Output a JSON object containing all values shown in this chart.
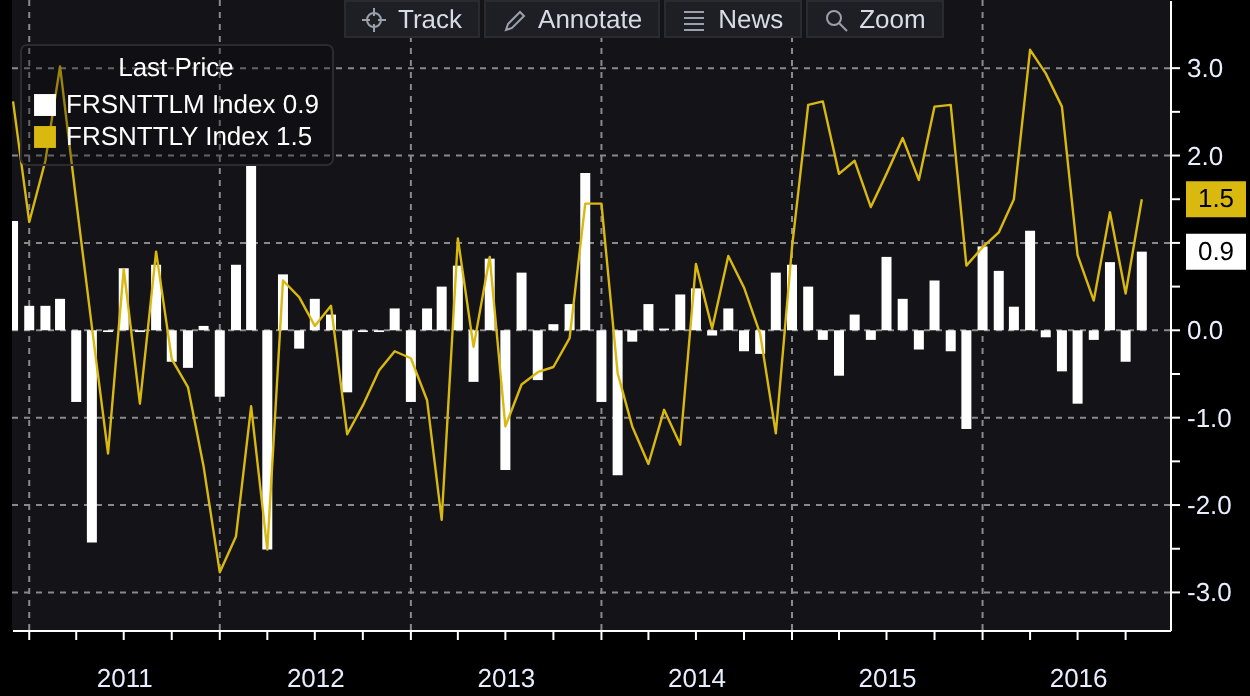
{
  "chart_data": {
    "type": "bar",
    "legend_title": "Last Price",
    "x": [
      "2010-12",
      "2011-01",
      "2011-02",
      "2011-03",
      "2011-04",
      "2011-05",
      "2011-06",
      "2011-07",
      "2011-08",
      "2011-09",
      "2011-10",
      "2011-11",
      "2011-12",
      "2012-01",
      "2012-02",
      "2012-03",
      "2012-04",
      "2012-05",
      "2012-06",
      "2012-07",
      "2012-08",
      "2012-09",
      "2012-10",
      "2012-11",
      "2012-12",
      "2013-01",
      "2013-02",
      "2013-03",
      "2013-04",
      "2013-05",
      "2013-06",
      "2013-07",
      "2013-08",
      "2013-09",
      "2013-10",
      "2013-11",
      "2013-12",
      "2014-01",
      "2014-02",
      "2014-03",
      "2014-04",
      "2014-05",
      "2014-06",
      "2014-07",
      "2014-08",
      "2014-09",
      "2014-10",
      "2014-11",
      "2014-12",
      "2015-01",
      "2015-02",
      "2015-03",
      "2015-04",
      "2015-05",
      "2015-06",
      "2015-07",
      "2015-08",
      "2015-09",
      "2015-10",
      "2015-11",
      "2015-12",
      "2016-01",
      "2016-02",
      "2016-03",
      "2016-04",
      "2016-05",
      "2016-06",
      "2016-07",
      "2016-08",
      "2016-09",
      "2016-10",
      "2016-11"
    ],
    "series": [
      {
        "name": "FRSNTTLM Index 0.9",
        "color": "#ffffff",
        "values": [
          1.25,
          0.28,
          0.28,
          0.36,
          -0.82,
          -2.43,
          -0.02,
          0.71,
          -0.02,
          0.75,
          -0.36,
          -0.43,
          0.05,
          -0.76,
          0.75,
          1.9,
          -2.51,
          0.64,
          -0.21,
          0.36,
          0.18,
          -0.71,
          -0.02,
          -0.02,
          0.25,
          -0.82,
          0.25,
          0.5,
          0.74,
          -0.59,
          0.82,
          -1.6,
          0.66,
          -0.57,
          0.07,
          0.3,
          1.8,
          -0.82,
          -1.66,
          -0.13,
          0.3,
          0.02,
          0.41,
          0.48,
          -0.06,
          0.25,
          -0.24,
          -0.27,
          0.66,
          0.75,
          0.5,
          -0.11,
          -0.52,
          0.18,
          -0.11,
          0.84,
          0.36,
          -0.22,
          0.57,
          -0.24,
          -1.13,
          0.96,
          0.68,
          0.27,
          1.14,
          -0.08,
          -0.47,
          -0.84,
          -0.11,
          0.78,
          -0.36,
          0.9
        ]
      },
      {
        "name": "FRSNTTLY Index 1.5",
        "type": "line",
        "color": "#d9b80f",
        "values": [
          2.62,
          1.24,
          1.94,
          3.02,
          1.48,
          0.04,
          -1.41,
          0.7,
          -0.84,
          0.9,
          -0.33,
          -0.65,
          -1.56,
          -2.77,
          -2.36,
          -0.87,
          -2.51,
          0.57,
          0.38,
          0.05,
          0.28,
          -1.19,
          -0.86,
          -0.46,
          -0.24,
          -0.32,
          -0.8,
          -2.17,
          1.05,
          -0.19,
          0.84,
          -1.1,
          -0.62,
          -0.48,
          -0.42,
          -0.09,
          1.45,
          1.45,
          -0.49,
          -1.1,
          -1.53,
          -0.91,
          -1.31,
          0.76,
          0.02,
          0.85,
          0.49,
          -0.04,
          -1.18,
          0.95,
          2.58,
          2.62,
          1.79,
          1.94,
          1.41,
          1.79,
          2.2,
          1.72,
          2.56,
          2.58,
          0.74,
          0.95,
          1.12,
          1.5,
          3.21,
          2.94,
          2.56,
          0.86,
          0.34,
          1.35,
          0.42,
          1.5
        ]
      }
    ],
    "xlim": [
      "2010-11-29",
      "2016-12-25"
    ],
    "xticks": [
      {
        "value": "2011-01-01",
        "label": null
      },
      {
        "value": "2011-04-01",
        "label": null
      },
      {
        "value": "2011-07-01",
        "label": "2011"
      },
      {
        "value": "2011-10-01",
        "label": null
      },
      {
        "value": "2012-01-01",
        "label": null
      },
      {
        "value": "2012-04-01",
        "label": null
      },
      {
        "value": "2012-07-01",
        "label": "2012"
      },
      {
        "value": "2012-10-01",
        "label": null
      },
      {
        "value": "2013-01-01",
        "label": null
      },
      {
        "value": "2013-04-01",
        "label": null
      },
      {
        "value": "2013-07-01",
        "label": "2013"
      },
      {
        "value": "2013-10-01",
        "label": null
      },
      {
        "value": "2014-01-01",
        "label": null
      },
      {
        "value": "2014-04-01",
        "label": null
      },
      {
        "value": "2014-07-01",
        "label": "2014"
      },
      {
        "value": "2014-10-01",
        "label": null
      },
      {
        "value": "2015-01-01",
        "label": null
      },
      {
        "value": "2015-04-01",
        "label": null
      },
      {
        "value": "2015-07-01",
        "label": "2015"
      },
      {
        "value": "2015-10-01",
        "label": null
      },
      {
        "value": "2016-01-01",
        "label": null
      },
      {
        "value": "2016-04-01",
        "label": null
      },
      {
        "value": "2016-07-01",
        "label": "2016"
      },
      {
        "value": "2016-10-01",
        "label": null
      }
    ],
    "ylim": [
      -3.43,
      3.78
    ],
    "yticks": [
      {
        "value": 3,
        "label": "3.0"
      },
      {
        "value": 2.5,
        "label": null
      },
      {
        "value": 2,
        "label": "2.0"
      },
      {
        "value": 1.5,
        "label": null
      },
      {
        "value": 1,
        "label": null
      },
      {
        "value": 0.5,
        "label": null
      },
      {
        "value": 0,
        "label": "0.0"
      },
      {
        "value": -0.5,
        "label": null
      },
      {
        "value": -1,
        "label": "-1.0"
      },
      {
        "value": -1.5,
        "label": null
      },
      {
        "value": -2,
        "label": "-2.0"
      },
      {
        "value": -2.5,
        "label": null
      },
      {
        "value": -3,
        "label": "-3.0"
      }
    ],
    "grid": true,
    "legend": "top left",
    "annotations": [
      "Track",
      "Annotate",
      "News",
      "Zoom",
      {
        "text": "1.5",
        "x": "2016-11",
        "y": 1.5
      },
      {
        "text": "0.9",
        "x": "2016-11",
        "y": 0.9
      }
    ]
  }
}
